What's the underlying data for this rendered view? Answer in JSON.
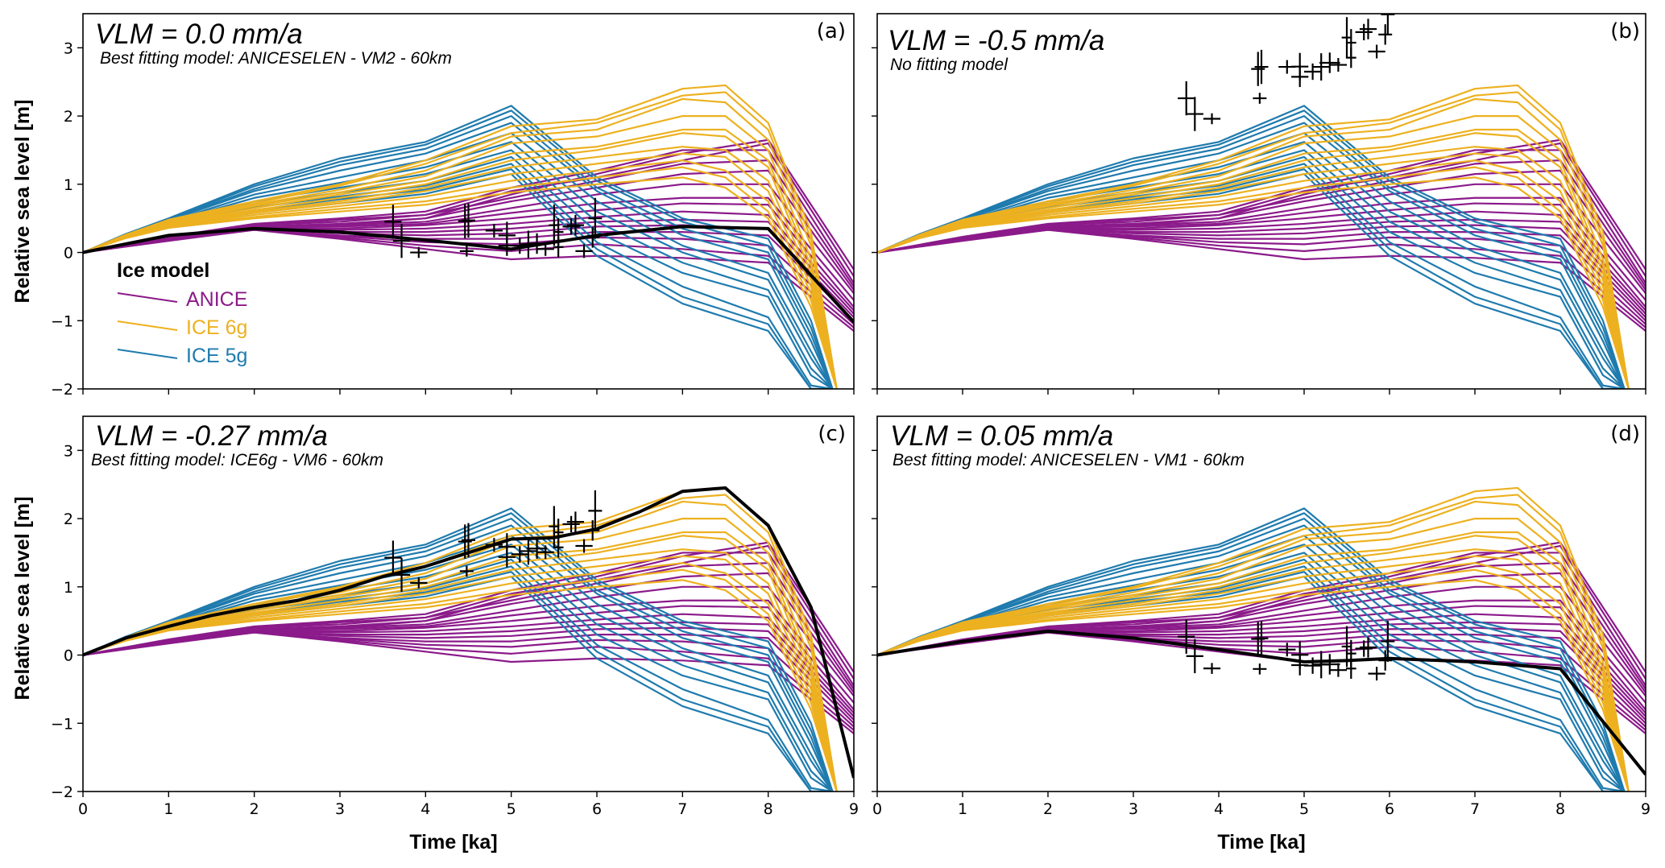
{
  "chart_data": {
    "type": "line",
    "layout": "2x2 grid",
    "shared_xlabel": "Time [ka]",
    "shared_ylabel": "Relative sea level [m]",
    "xlim": [
      0,
      9
    ],
    "ylim": [
      -2,
      3.5
    ],
    "xticks": [
      0,
      1,
      2,
      3,
      4,
      5,
      6,
      7,
      8,
      9
    ],
    "yticks": [
      -2,
      -1,
      0,
      1,
      2,
      3
    ],
    "xtick_labels": [
      "0",
      "1",
      "2",
      "3",
      "4",
      "5",
      "6",
      "7",
      "8",
      "9"
    ],
    "ytick_labels": [
      "−2",
      "−1",
      "0",
      "1",
      "2",
      "3"
    ],
    "grid": false,
    "legend": {
      "title": "Ice model",
      "placement": "panel (a), center-left",
      "entries": [
        {
          "label": "ANICE",
          "color": "#8b1a8a"
        },
        {
          "label": "ICE 6g",
          "color": "#edb120"
        },
        {
          "label": "ICE 5g",
          "color": "#1f7bae"
        }
      ]
    },
    "model_families": [
      {
        "name": "ANICE",
        "color": "#8b1a8a",
        "x": [
          0,
          1,
          2,
          3,
          4,
          5,
          6,
          7,
          8,
          9
        ],
        "curves": [
          [
            0,
            0.22,
            0.38,
            0.4,
            0.5,
            0.85,
            1.15,
            1.45,
            1.65,
            -0.25
          ],
          [
            0,
            0.22,
            0.4,
            0.48,
            0.55,
            0.9,
            1.1,
            1.35,
            1.6,
            -0.35
          ],
          [
            0,
            0.23,
            0.42,
            0.5,
            0.6,
            0.95,
            1.2,
            1.5,
            1.5,
            -0.45
          ],
          [
            0,
            0.22,
            0.4,
            0.45,
            0.55,
            0.8,
            1.05,
            1.3,
            1.35,
            -0.5
          ],
          [
            0,
            0.21,
            0.38,
            0.42,
            0.5,
            0.75,
            0.95,
            1.15,
            1.2,
            -0.55
          ],
          [
            0,
            0.2,
            0.37,
            0.4,
            0.45,
            0.65,
            0.85,
            1.0,
            1.0,
            -0.6
          ],
          [
            0,
            0.2,
            0.37,
            0.38,
            0.42,
            0.58,
            0.72,
            0.8,
            0.8,
            -0.7
          ],
          [
            0,
            0.2,
            0.36,
            0.35,
            0.4,
            0.5,
            0.62,
            0.72,
            0.7,
            -0.8
          ],
          [
            0,
            0.2,
            0.36,
            0.33,
            0.35,
            0.42,
            0.52,
            0.6,
            0.55,
            -0.85
          ],
          [
            0,
            0.19,
            0.35,
            0.3,
            0.3,
            0.35,
            0.45,
            0.48,
            0.45,
            -0.9
          ],
          [
            0,
            0.19,
            0.35,
            0.28,
            0.25,
            0.28,
            0.38,
            0.4,
            0.35,
            -0.95
          ],
          [
            0,
            0.18,
            0.34,
            0.25,
            0.2,
            0.2,
            0.3,
            0.3,
            0.25,
            -1.0
          ],
          [
            0,
            0.18,
            0.34,
            0.24,
            0.15,
            0.12,
            0.22,
            0.2,
            0.1,
            -1.05
          ],
          [
            0,
            0.18,
            0.33,
            0.22,
            0.1,
            0.02,
            0.12,
            0.05,
            -0.05,
            -1.1
          ],
          [
            0,
            0.17,
            0.33,
            0.2,
            0.05,
            -0.1,
            -0.05,
            -0.08,
            -0.15,
            -1.15
          ]
        ]
      },
      {
        "name": "ICE 6g",
        "color": "#edb120",
        "x": [
          0,
          0.5,
          1,
          2,
          3,
          4,
          5,
          6,
          7,
          7.5,
          8,
          8.5,
          8.8
        ],
        "curves": [
          [
            0,
            0.26,
            0.48,
            0.75,
            1.0,
            1.35,
            1.85,
            1.95,
            2.4,
            2.45,
            1.9,
            0.3,
            -2.0
          ],
          [
            0,
            0.26,
            0.47,
            0.72,
            0.98,
            1.3,
            1.75,
            1.9,
            2.3,
            2.35,
            1.8,
            0.2,
            -2.0
          ],
          [
            0,
            0.25,
            0.45,
            0.7,
            0.92,
            1.2,
            1.7,
            1.8,
            2.25,
            2.2,
            1.65,
            0.1,
            -2.0
          ],
          [
            0,
            0.25,
            0.44,
            0.68,
            0.88,
            1.12,
            1.6,
            1.7,
            2.0,
            2.0,
            1.5,
            -0.1,
            -2.0
          ],
          [
            0,
            0.24,
            0.42,
            0.65,
            0.85,
            1.05,
            1.45,
            1.55,
            1.8,
            1.8,
            1.35,
            -0.2,
            -2.0
          ],
          [
            0,
            0.24,
            0.41,
            0.62,
            0.8,
            1.0,
            1.35,
            1.5,
            1.75,
            1.7,
            1.25,
            -0.3,
            -2.0
          ],
          [
            0,
            0.23,
            0.4,
            0.6,
            0.75,
            0.95,
            1.25,
            1.4,
            1.55,
            1.5,
            1.05,
            -0.4,
            -2.0
          ],
          [
            0,
            0.23,
            0.39,
            0.58,
            0.72,
            0.9,
            1.15,
            1.3,
            1.45,
            1.4,
            0.9,
            -0.5,
            -2.0
          ],
          [
            0,
            0.22,
            0.38,
            0.55,
            0.68,
            0.82,
            1.05,
            1.2,
            1.35,
            1.2,
            0.75,
            -0.6,
            -2.0
          ],
          [
            0,
            0.22,
            0.37,
            0.52,
            0.64,
            0.75,
            0.95,
            1.1,
            1.25,
            1.1,
            0.6,
            -0.7,
            -2.0
          ],
          [
            0,
            0.21,
            0.36,
            0.5,
            0.6,
            0.7,
            0.88,
            1.0,
            1.1,
            0.95,
            0.5,
            -0.8,
            -2.0
          ]
        ]
      },
      {
        "name": "ICE 5g",
        "color": "#1f7bae",
        "x": [
          0,
          0.5,
          1,
          2,
          3,
          4,
          5,
          6,
          7,
          8,
          8.5,
          8.75
        ],
        "curves": [
          [
            0,
            0.27,
            0.5,
            1.0,
            1.38,
            1.62,
            2.15,
            1.1,
            0.5,
            0.2,
            -1.0,
            -2.0
          ],
          [
            0,
            0.27,
            0.49,
            0.97,
            1.33,
            1.58,
            2.08,
            1.05,
            0.45,
            0.1,
            -1.1,
            -2.0
          ],
          [
            0,
            0.26,
            0.48,
            0.93,
            1.28,
            1.52,
            2.0,
            0.95,
            0.35,
            0.0,
            -1.2,
            -2.0
          ],
          [
            0,
            0.26,
            0.47,
            0.9,
            1.2,
            1.45,
            1.9,
            0.9,
            0.25,
            -0.1,
            -1.3,
            -2.0
          ],
          [
            0,
            0.25,
            0.45,
            0.85,
            1.1,
            1.35,
            1.75,
            0.75,
            0.1,
            -0.3,
            -1.45,
            -2.0
          ],
          [
            0,
            0.25,
            0.44,
            0.8,
            1.02,
            1.25,
            1.62,
            0.6,
            0.0,
            -0.4,
            -1.55,
            -2.0
          ],
          [
            0,
            0.24,
            0.43,
            0.75,
            0.95,
            1.15,
            1.5,
            0.45,
            -0.15,
            -0.55,
            -1.7,
            -2.0
          ],
          [
            0,
            0.24,
            0.42,
            0.7,
            0.88,
            1.05,
            1.4,
            0.3,
            -0.3,
            -0.65,
            -1.8,
            -2.0
          ],
          [
            0,
            0.23,
            0.41,
            0.66,
            0.82,
            0.98,
            1.3,
            0.15,
            -0.5,
            -0.95,
            -1.95,
            -2.0
          ],
          [
            0,
            0.23,
            0.4,
            0.62,
            0.78,
            0.92,
            1.22,
            0.05,
            -0.65,
            -1.05,
            -2.0,
            -2.0
          ],
          [
            0,
            0.22,
            0.39,
            0.58,
            0.72,
            0.86,
            1.15,
            -0.05,
            -0.75,
            -1.15,
            -2.0,
            -2.0
          ]
        ]
      }
    ],
    "panels": [
      {
        "id": "a",
        "letter": "(a)",
        "title": "VLM = 0.0 mm/a",
        "subtitle": "Best fitting model: ANICESELEN - VM2 - 60km",
        "vlm_mm_per_a": 0.0,
        "show_legend": true,
        "show_ylabel": true,
        "show_xlabel": false,
        "best_fit": {
          "x": [
            0,
            1,
            2,
            3,
            4,
            5,
            5.5,
            6,
            7,
            8,
            9
          ],
          "y": [
            0,
            0.25,
            0.35,
            0.3,
            0.18,
            0.05,
            0.15,
            0.25,
            0.38,
            0.35,
            -1.02
          ]
        }
      },
      {
        "id": "b",
        "letter": "(b)",
        "title": "VLM = -0.5 mm/a",
        "subtitle": "No fitting model",
        "vlm_mm_per_a": -0.5,
        "show_legend": false,
        "show_ylabel": false,
        "show_xlabel": false,
        "best_fit": null
      },
      {
        "id": "c",
        "letter": "(c)",
        "title": "VLM = -0.27 mm/a",
        "subtitle": "Best fitting model: ICE6g - VM6 - 60km",
        "vlm_mm_per_a": -0.27,
        "show_legend": false,
        "show_ylabel": true,
        "show_xlabel": true,
        "best_fit": {
          "x": [
            0,
            0.5,
            1,
            1.5,
            2,
            2.5,
            3,
            3.5,
            4,
            4.5,
            5,
            5.5,
            6,
            6.5,
            7,
            7.5,
            8,
            8.5,
            9
          ],
          "y": [
            0,
            0.25,
            0.42,
            0.58,
            0.7,
            0.8,
            0.95,
            1.15,
            1.3,
            1.5,
            1.7,
            1.72,
            1.85,
            2.1,
            2.4,
            2.45,
            1.9,
            0.7,
            -1.8
          ]
        }
      },
      {
        "id": "d",
        "letter": "(d)",
        "title": "VLM = 0.05 mm/a",
        "subtitle": "Best fitting model: ANICESELEN - VM1 - 60km",
        "vlm_mm_per_a": 0.05,
        "show_legend": false,
        "show_ylabel": false,
        "show_xlabel": true,
        "best_fit": {
          "x": [
            0,
            1,
            2,
            3,
            4,
            5,
            5.5,
            6,
            7,
            8,
            9
          ],
          "y": [
            0,
            0.2,
            0.35,
            0.25,
            0.08,
            -0.1,
            -0.08,
            -0.05,
            -0.1,
            -0.2,
            -1.75
          ]
        }
      }
    ],
    "observations_vlm0": {
      "note": "sea-level index points (time, RSL, error bars); plotted in each panel shifted by -VLM * time",
      "points": [
        {
          "t": 3.62,
          "rsl": 0.45,
          "et": 0.1,
          "ersl": 0.25
        },
        {
          "t": 3.72,
          "rsl": 0.17,
          "et": 0.1,
          "ersl": 0.25
        },
        {
          "t": 3.92,
          "rsl": 0.0,
          "et": 0.1,
          "ersl": 0.08
        },
        {
          "t": 4.46,
          "rsl": 0.46,
          "et": 0.08,
          "ersl": 0.25
        },
        {
          "t": 4.5,
          "rsl": 0.47,
          "et": 0.08,
          "ersl": 0.25
        },
        {
          "t": 4.48,
          "rsl": 0.02,
          "et": 0.08,
          "ersl": 0.08
        },
        {
          "t": 4.8,
          "rsl": 0.32,
          "et": 0.1,
          "ersl": 0.1
        },
        {
          "t": 4.95,
          "rsl": 0.25,
          "et": 0.1,
          "ersl": 0.2
        },
        {
          "t": 4.95,
          "rsl": 0.1,
          "et": 0.1,
          "ersl": 0.15
        },
        {
          "t": 5.1,
          "rsl": 0.1,
          "et": 0.1,
          "ersl": 0.12
        },
        {
          "t": 5.2,
          "rsl": 0.12,
          "et": 0.1,
          "ersl": 0.2
        },
        {
          "t": 5.3,
          "rsl": 0.13,
          "et": 0.12,
          "ersl": 0.15
        },
        {
          "t": 5.4,
          "rsl": 0.05,
          "et": 0.1,
          "ersl": 0.1
        },
        {
          "t": 5.5,
          "rsl": 0.4,
          "et": 0.06,
          "ersl": 0.3
        },
        {
          "t": 5.55,
          "rsl": 0.3,
          "et": 0.06,
          "ersl": 0.2
        },
        {
          "t": 5.55,
          "rsl": 0.08,
          "et": 0.06,
          "ersl": 0.15
        },
        {
          "t": 5.7,
          "rsl": 0.38,
          "et": 0.1,
          "ersl": 0.12
        },
        {
          "t": 5.75,
          "rsl": 0.4,
          "et": 0.1,
          "ersl": 0.15
        },
        {
          "t": 5.85,
          "rsl": 0.02,
          "et": 0.1,
          "ersl": 0.1
        },
        {
          "t": 5.98,
          "rsl": 0.5,
          "et": 0.08,
          "ersl": 0.3
        },
        {
          "t": 5.95,
          "rsl": 0.22,
          "et": 0.08,
          "ersl": 0.15
        }
      ]
    }
  }
}
